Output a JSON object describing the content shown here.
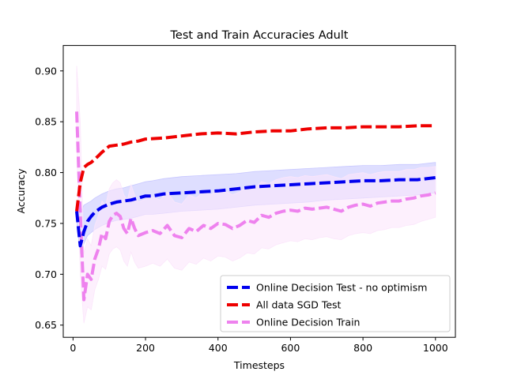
{
  "chart_data": {
    "type": "line",
    "title": "Test and Train Accuracies Adult",
    "xlabel": "Timesteps",
    "ylabel": "Accuracy",
    "xlim": [
      -27,
      1055
    ],
    "ylim": [
      0.638,
      0.925
    ],
    "xticks": [
      0,
      200,
      400,
      600,
      800,
      1000
    ],
    "yticks": [
      0.65,
      0.7,
      0.75,
      0.8,
      0.85,
      0.9
    ],
    "ytick_labels": [
      "0.65",
      "0.70",
      "0.75",
      "0.80",
      "0.85",
      "0.90"
    ],
    "grid": false,
    "legend_position": "lower-right",
    "series": [
      {
        "name": "Online Decision Test - no optimism",
        "color": "#0000ee",
        "band_color": "#c8c8ff",
        "x": [
          10,
          20,
          30,
          40,
          50,
          60,
          80,
          100,
          120,
          140,
          160,
          180,
          200,
          220,
          250,
          300,
          350,
          400,
          450,
          500,
          550,
          600,
          650,
          700,
          750,
          800,
          850,
          900,
          950,
          1000
        ],
        "y": [
          0.762,
          0.728,
          0.742,
          0.752,
          0.757,
          0.761,
          0.766,
          0.769,
          0.771,
          0.772,
          0.773,
          0.775,
          0.777,
          0.777,
          0.779,
          0.78,
          0.781,
          0.782,
          0.784,
          0.786,
          0.787,
          0.788,
          0.789,
          0.79,
          0.791,
          0.792,
          0.792,
          0.793,
          0.793,
          0.795
        ],
        "lower": [
          0.752,
          0.72,
          0.73,
          0.738,
          0.741,
          0.744,
          0.748,
          0.751,
          0.753,
          0.754,
          0.755,
          0.757,
          0.759,
          0.759,
          0.76,
          0.762,
          0.763,
          0.764,
          0.766,
          0.768,
          0.769,
          0.77,
          0.771,
          0.773,
          0.774,
          0.775,
          0.776,
          0.777,
          0.778,
          0.78
        ],
        "upper": [
          0.772,
          0.76,
          0.768,
          0.77,
          0.772,
          0.775,
          0.779,
          0.782,
          0.784,
          0.785,
          0.787,
          0.789,
          0.791,
          0.792,
          0.794,
          0.796,
          0.797,
          0.798,
          0.799,
          0.801,
          0.802,
          0.803,
          0.804,
          0.805,
          0.806,
          0.807,
          0.807,
          0.808,
          0.808,
          0.81
        ]
      },
      {
        "name": "All data SGD Test",
        "color": "#ee0000",
        "x": [
          10,
          20,
          30,
          40,
          50,
          60,
          80,
          100,
          120,
          140,
          160,
          180,
          200,
          250,
          300,
          350,
          400,
          450,
          500,
          550,
          600,
          650,
          700,
          750,
          800,
          850,
          900,
          950,
          1000
        ],
        "y": [
          0.762,
          0.79,
          0.805,
          0.808,
          0.81,
          0.813,
          0.82,
          0.826,
          0.827,
          0.828,
          0.83,
          0.831,
          0.833,
          0.834,
          0.836,
          0.838,
          0.839,
          0.838,
          0.84,
          0.841,
          0.841,
          0.843,
          0.844,
          0.844,
          0.845,
          0.845,
          0.845,
          0.846,
          0.846
        ]
      },
      {
        "name": "Online Decision Train",
        "color": "#ee82ee",
        "band_color": "#fbe6fb",
        "x": [
          10,
          20,
          30,
          40,
          50,
          60,
          70,
          80,
          90,
          100,
          110,
          120,
          130,
          140,
          150,
          160,
          170,
          180,
          200,
          220,
          240,
          260,
          280,
          300,
          320,
          340,
          360,
          380,
          400,
          420,
          440,
          460,
          480,
          500,
          520,
          540,
          560,
          580,
          600,
          620,
          640,
          660,
          680,
          700,
          720,
          740,
          760,
          780,
          800,
          820,
          840,
          860,
          880,
          900,
          920,
          940,
          960,
          980,
          1000
        ],
        "y": [
          0.86,
          0.76,
          0.675,
          0.7,
          0.695,
          0.715,
          0.725,
          0.74,
          0.735,
          0.752,
          0.758,
          0.76,
          0.757,
          0.745,
          0.74,
          0.755,
          0.745,
          0.738,
          0.741,
          0.743,
          0.74,
          0.748,
          0.738,
          0.736,
          0.745,
          0.742,
          0.748,
          0.745,
          0.75,
          0.749,
          0.745,
          0.748,
          0.753,
          0.751,
          0.758,
          0.756,
          0.76,
          0.762,
          0.763,
          0.762,
          0.765,
          0.764,
          0.765,
          0.766,
          0.764,
          0.762,
          0.766,
          0.768,
          0.769,
          0.767,
          0.77,
          0.771,
          0.772,
          0.772,
          0.774,
          0.775,
          0.777,
          0.778,
          0.78
        ],
        "lower": [
          0.83,
          0.7,
          0.652,
          0.668,
          0.665,
          0.685,
          0.695,
          0.708,
          0.705,
          0.72,
          0.725,
          0.727,
          0.724,
          0.713,
          0.708,
          0.722,
          0.712,
          0.706,
          0.708,
          0.711,
          0.708,
          0.715,
          0.706,
          0.704,
          0.712,
          0.71,
          0.716,
          0.713,
          0.718,
          0.717,
          0.713,
          0.716,
          0.721,
          0.72,
          0.726,
          0.725,
          0.729,
          0.731,
          0.733,
          0.732,
          0.735,
          0.734,
          0.736,
          0.737,
          0.735,
          0.734,
          0.738,
          0.74,
          0.741,
          0.74,
          0.743,
          0.744,
          0.746,
          0.746,
          0.748,
          0.749,
          0.752,
          0.754,
          0.756
        ],
        "upper": [
          0.905,
          0.85,
          0.72,
          0.735,
          0.728,
          0.748,
          0.758,
          0.772,
          0.768,
          0.784,
          0.79,
          0.793,
          0.79,
          0.778,
          0.773,
          0.788,
          0.778,
          0.771,
          0.774,
          0.776,
          0.773,
          0.781,
          0.771,
          0.769,
          0.778,
          0.775,
          0.781,
          0.778,
          0.783,
          0.782,
          0.778,
          0.781,
          0.786,
          0.784,
          0.791,
          0.789,
          0.793,
          0.795,
          0.796,
          0.795,
          0.797,
          0.796,
          0.797,
          0.798,
          0.796,
          0.794,
          0.798,
          0.799,
          0.8,
          0.798,
          0.8,
          0.801,
          0.801,
          0.801,
          0.803,
          0.803,
          0.805,
          0.805,
          0.806
        ]
      }
    ]
  }
}
